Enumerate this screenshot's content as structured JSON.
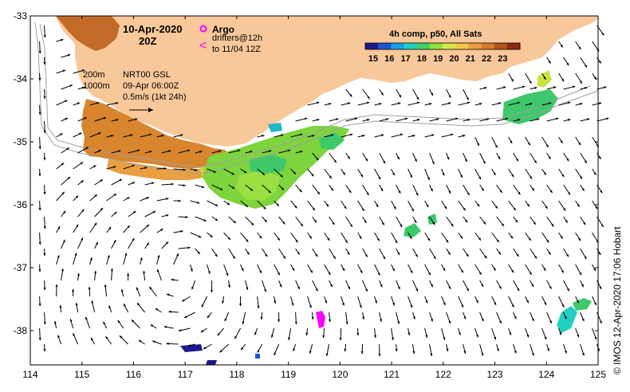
{
  "header": {
    "date": "10-Apr-2020",
    "hour": "20Z",
    "argo_label": "Argo",
    "drifters_line1": "drifters@12h",
    "drifters_line2": "to 11/04 12Z"
  },
  "contours": {
    "label_200": "200m",
    "label_1000": "1000m"
  },
  "model": {
    "name": "NRT00 GSL",
    "time": "09-Apr 06:00Z",
    "scale": "0.5m/s (1kt 24h)"
  },
  "colorbar": {
    "title": "4h comp, p50, All Sats",
    "ticks": [
      "15",
      "16",
      "17",
      "18",
      "19",
      "20",
      "21",
      "22",
      "23"
    ],
    "colors": [
      "#1a1a8c",
      "#1f55d0",
      "#1aa0e6",
      "#20d0c0",
      "#3ed26a",
      "#8fe03a",
      "#d8e64a",
      "#f0c84a",
      "#eaa040",
      "#d87a2e",
      "#b8501e",
      "#8e2a14"
    ]
  },
  "axes": {
    "y_ticks": [
      "-33",
      "-34",
      "-35",
      "-36",
      "-37",
      "-38"
    ],
    "x_ticks": [
      "114",
      "115",
      "116",
      "117",
      "118",
      "119",
      "120",
      "121",
      "122",
      "123",
      "124",
      "125"
    ]
  },
  "credit": "© IMOS 12-Apr-2020 17:06 Hobart",
  "colors": {
    "land": "#f8c89a",
    "arrow": "#000000",
    "contour": "#a0a0a0",
    "argo": "#ff00ff"
  }
}
